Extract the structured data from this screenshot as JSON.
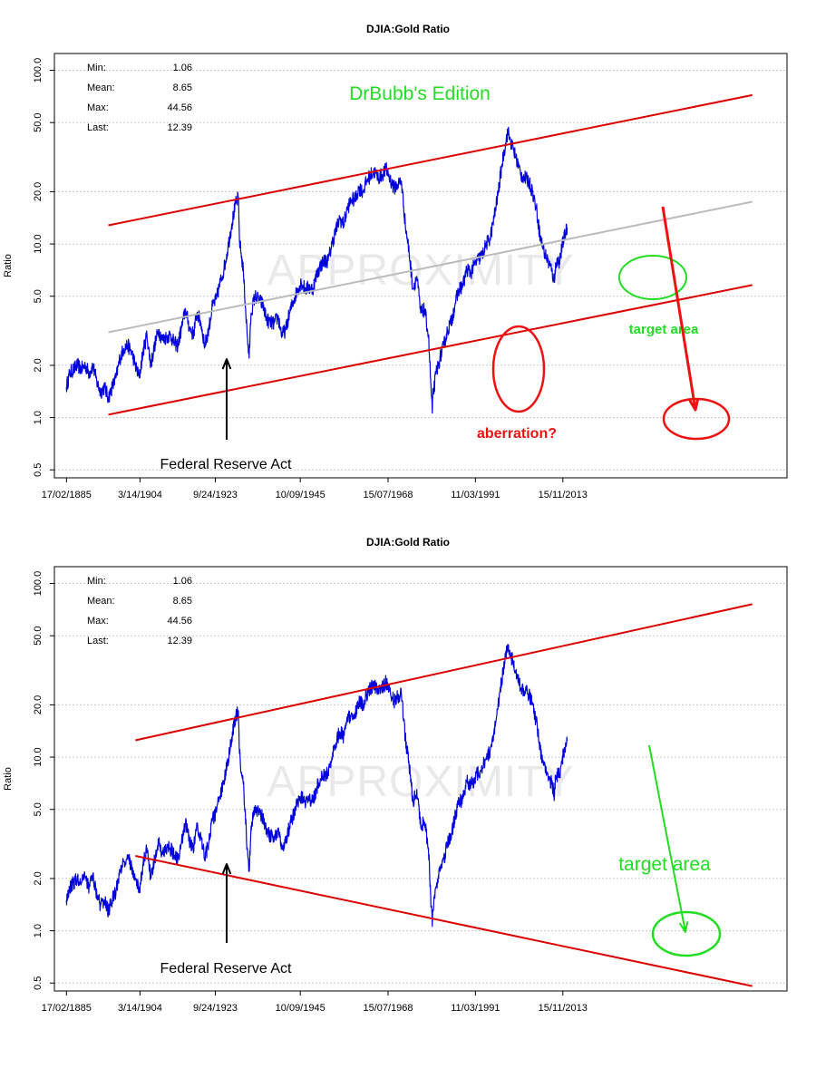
{
  "colors": {
    "series": "#0000dd",
    "channel": "#dd0000",
    "trend": "#bbbbbb",
    "annotation_green": "#22dd22",
    "annotation_red": "#ee1111",
    "grid": "#c8c8c8"
  },
  "chart_data": [
    {
      "type": "line",
      "title": "DJIA:Gold Ratio",
      "ylabel": "Ratio",
      "xlabel": "",
      "yscale": "log",
      "ylim": [
        0.45,
        125
      ],
      "xlim": [
        1882,
        2072
      ],
      "y_ticks": [
        "0.5",
        "1.0",
        "2.0",
        "5.0",
        "10.0",
        "20.0",
        "50.0",
        "100.0"
      ],
      "x_ticks": [
        "17/02/1885",
        "3/14/1904",
        "9/24/1923",
        "10/09/1945",
        "15/07/1968",
        "11/03/1991",
        "15/11/2013"
      ],
      "grid": "horizontal dotted",
      "watermark": "APPROXIMITY",
      "stats": [
        {
          "label": "Min:",
          "value": "1.06"
        },
        {
          "label": "Mean:",
          "value": "8.65"
        },
        {
          "label": "Max:",
          "value": "44.56"
        },
        {
          "label": "Last:",
          "value": "12.39"
        }
      ],
      "series": [
        {
          "values_x": [
            1885.1,
            1886,
            1887,
            1888,
            1889,
            1890,
            1891,
            1892,
            1893,
            1894,
            1895,
            1896,
            1897,
            1898,
            1899,
            1900,
            1901,
            1902,
            1903,
            1904,
            1905,
            1906,
            1907,
            1908,
            1909,
            1910,
            1911,
            1912,
            1913,
            1914,
            1915,
            1916,
            1917,
            1918,
            1919,
            1920,
            1921,
            1922,
            1923,
            1924,
            1925,
            1926,
            1927,
            1928,
            1929,
            1929.7,
            1930,
            1931,
            1932,
            1932.5,
            1933,
            1934,
            1935,
            1936,
            1937,
            1938,
            1939,
            1940,
            1941,
            1942,
            1943,
            1944,
            1945,
            1946,
            1947,
            1948,
            1949,
            1950,
            1951,
            1952,
            1953,
            1954,
            1955,
            1956,
            1957,
            1958,
            1959,
            1960,
            1961,
            1962,
            1963,
            1964,
            1965,
            1966,
            1967,
            1968,
            1969,
            1970,
            1971,
            1972,
            1973,
            1974,
            1975,
            1976,
            1977,
            1978,
            1979,
            1980,
            1980.1,
            1981,
            1982,
            1983,
            1984,
            1985,
            1986,
            1987,
            1988,
            1989,
            1990,
            1991,
            1992,
            1993,
            1994,
            1995,
            1996,
            1997,
            1998,
            1999,
            1999.6,
            2000,
            2001,
            2002,
            2003,
            2004,
            2005,
            2006,
            2007,
            2008,
            2009,
            2010,
            2011,
            2011.7,
            2012,
            2013,
            2014,
            2015
          ],
          "values_y": [
            1.5,
            1.8,
            1.9,
            2.0,
            1.9,
            2.0,
            1.8,
            2.0,
            1.6,
            1.4,
            1.5,
            1.3,
            1.5,
            1.7,
            2.2,
            2.5,
            2.6,
            2.4,
            2.0,
            1.7,
            2.4,
            3.0,
            2.0,
            2.6,
            3.2,
            2.8,
            2.9,
            3.0,
            2.7,
            2.6,
            3.3,
            4.2,
            3.3,
            3.0,
            4.0,
            3.5,
            2.6,
            3.2,
            4.4,
            4.8,
            6.0,
            7.2,
            9.5,
            13.0,
            17.0,
            18.5,
            10.5,
            7.0,
            3.0,
            2.2,
            4.0,
            5.0,
            4.8,
            4.5,
            3.7,
            3.5,
            3.5,
            3.8,
            3.0,
            3.2,
            4.0,
            4.7,
            5.4,
            6.0,
            5.5,
            5.6,
            5.5,
            6.6,
            7.5,
            8.0,
            8.0,
            10.0,
            12.0,
            14.0,
            13.0,
            16.0,
            18.0,
            18.0,
            21.0,
            20.0,
            23.0,
            25.0,
            26.0,
            24.0,
            25.0,
            27.0,
            24.0,
            21.0,
            22.0,
            23.0,
            13.0,
            9.0,
            5.5,
            6.5,
            4.0,
            4.2,
            3.0,
            1.06,
            1.3,
            1.8,
            2.2,
            2.6,
            3.2,
            3.6,
            4.6,
            5.5,
            5.8,
            7.2,
            6.8,
            7.6,
            8.2,
            8.6,
            10.0,
            10.8,
            14.0,
            19.0,
            28.0,
            38.0,
            44.56,
            41.0,
            35.0,
            30.0,
            25.0,
            24.0,
            23.0,
            20.0,
            16.0,
            11.0,
            9.0,
            8.0,
            7.0,
            6.0,
            7.8,
            8.0,
            10.5,
            12.39
          ]
        }
      ],
      "lines": [
        {
          "name": "upper-channel",
          "x": [
            1896,
            2063
          ],
          "y": [
            12.8,
            72
          ]
        },
        {
          "name": "trend-line",
          "x": [
            1896,
            2063
          ],
          "y": [
            3.1,
            17.5
          ]
        },
        {
          "name": "lower-channel",
          "x": [
            1896,
            2063
          ],
          "y": [
            1.04,
            5.8
          ]
        }
      ],
      "annotations": {
        "edition": "DrBubb's Edition",
        "target": "target area",
        "aberration": "aberration?",
        "fed": "Federal Reserve Act"
      }
    },
    {
      "type": "line",
      "title": "DJIA:Gold Ratio",
      "ylabel": "Ratio",
      "xlabel": "",
      "yscale": "log",
      "ylim": [
        0.45,
        125
      ],
      "xlim": [
        1882,
        2072
      ],
      "y_ticks": [
        "0.5",
        "1.0",
        "2.0",
        "5.0",
        "10.0",
        "20.0",
        "50.0",
        "100.0"
      ],
      "x_ticks": [
        "17/02/1885",
        "3/14/1904",
        "9/24/1923",
        "10/09/1945",
        "15/07/1968",
        "11/03/1991",
        "15/11/2013"
      ],
      "grid": "horizontal dotted",
      "watermark": "APPROXIMITY",
      "stats": [
        {
          "label": "Min:",
          "value": "1.06"
        },
        {
          "label": "Mean:",
          "value": "8.65"
        },
        {
          "label": "Max:",
          "value": "44.56"
        },
        {
          "label": "Last:",
          "value": "12.39"
        }
      ],
      "series": [
        {
          "values_x": [
            1885.1,
            1886,
            1887,
            1888,
            1889,
            1890,
            1891,
            1892,
            1893,
            1894,
            1895,
            1896,
            1897,
            1898,
            1899,
            1900,
            1901,
            1902,
            1903,
            1904,
            1905,
            1906,
            1907,
            1908,
            1909,
            1910,
            1911,
            1912,
            1913,
            1914,
            1915,
            1916,
            1917,
            1918,
            1919,
            1920,
            1921,
            1922,
            1923,
            1924,
            1925,
            1926,
            1927,
            1928,
            1929,
            1929.7,
            1930,
            1931,
            1932,
            1932.5,
            1933,
            1934,
            1935,
            1936,
            1937,
            1938,
            1939,
            1940,
            1941,
            1942,
            1943,
            1944,
            1945,
            1946,
            1947,
            1948,
            1949,
            1950,
            1951,
            1952,
            1953,
            1954,
            1955,
            1956,
            1957,
            1958,
            1959,
            1960,
            1961,
            1962,
            1963,
            1964,
            1965,
            1966,
            1967,
            1968,
            1969,
            1970,
            1971,
            1972,
            1973,
            1974,
            1975,
            1976,
            1977,
            1978,
            1979,
            1980,
            1980.1,
            1981,
            1982,
            1983,
            1984,
            1985,
            1986,
            1987,
            1988,
            1989,
            1990,
            1991,
            1992,
            1993,
            1994,
            1995,
            1996,
            1997,
            1998,
            1999,
            1999.6,
            2000,
            2001,
            2002,
            2003,
            2004,
            2005,
            2006,
            2007,
            2008,
            2009,
            2010,
            2011,
            2011.7,
            2012,
            2013,
            2014,
            2015
          ],
          "values_y": [
            1.5,
            1.8,
            1.9,
            2.0,
            1.9,
            2.0,
            1.8,
            2.0,
            1.6,
            1.4,
            1.5,
            1.3,
            1.5,
            1.7,
            2.2,
            2.5,
            2.6,
            2.4,
            2.0,
            1.7,
            2.4,
            3.0,
            2.0,
            2.6,
            3.2,
            2.8,
            2.9,
            3.0,
            2.7,
            2.6,
            3.3,
            4.2,
            3.3,
            3.0,
            4.0,
            3.5,
            2.6,
            3.2,
            4.4,
            4.8,
            6.0,
            7.2,
            9.5,
            13.0,
            17.0,
            18.5,
            10.5,
            7.0,
            3.0,
            2.2,
            4.0,
            5.0,
            4.8,
            4.5,
            3.7,
            3.5,
            3.5,
            3.8,
            3.0,
            3.2,
            4.0,
            4.7,
            5.4,
            6.0,
            5.5,
            5.6,
            5.5,
            6.6,
            7.5,
            8.0,
            8.0,
            10.0,
            12.0,
            14.0,
            13.0,
            16.0,
            18.0,
            18.0,
            21.0,
            20.0,
            23.0,
            25.0,
            26.0,
            24.0,
            25.0,
            27.0,
            24.0,
            21.0,
            22.0,
            23.0,
            13.0,
            9.0,
            5.5,
            6.5,
            4.0,
            4.2,
            3.0,
            1.06,
            1.3,
            1.8,
            2.2,
            2.6,
            3.2,
            3.6,
            4.6,
            5.5,
            5.8,
            7.2,
            6.8,
            7.6,
            8.2,
            8.6,
            10.0,
            10.8,
            14.0,
            19.0,
            28.0,
            38.0,
            44.56,
            41.0,
            35.0,
            30.0,
            25.0,
            24.0,
            23.0,
            20.0,
            16.0,
            11.0,
            9.0,
            8.0,
            7.0,
            6.0,
            7.8,
            8.0,
            10.5,
            12.39
          ]
        }
      ],
      "lines": [
        {
          "name": "upper-channel",
          "x": [
            1903,
            2063
          ],
          "y": [
            12.5,
            76
          ]
        },
        {
          "name": "lower-channel",
          "x": [
            1903,
            2063
          ],
          "y": [
            2.7,
            0.48
          ]
        }
      ],
      "annotations": {
        "target": "target area",
        "fed": "Federal Reserve Act"
      }
    }
  ]
}
